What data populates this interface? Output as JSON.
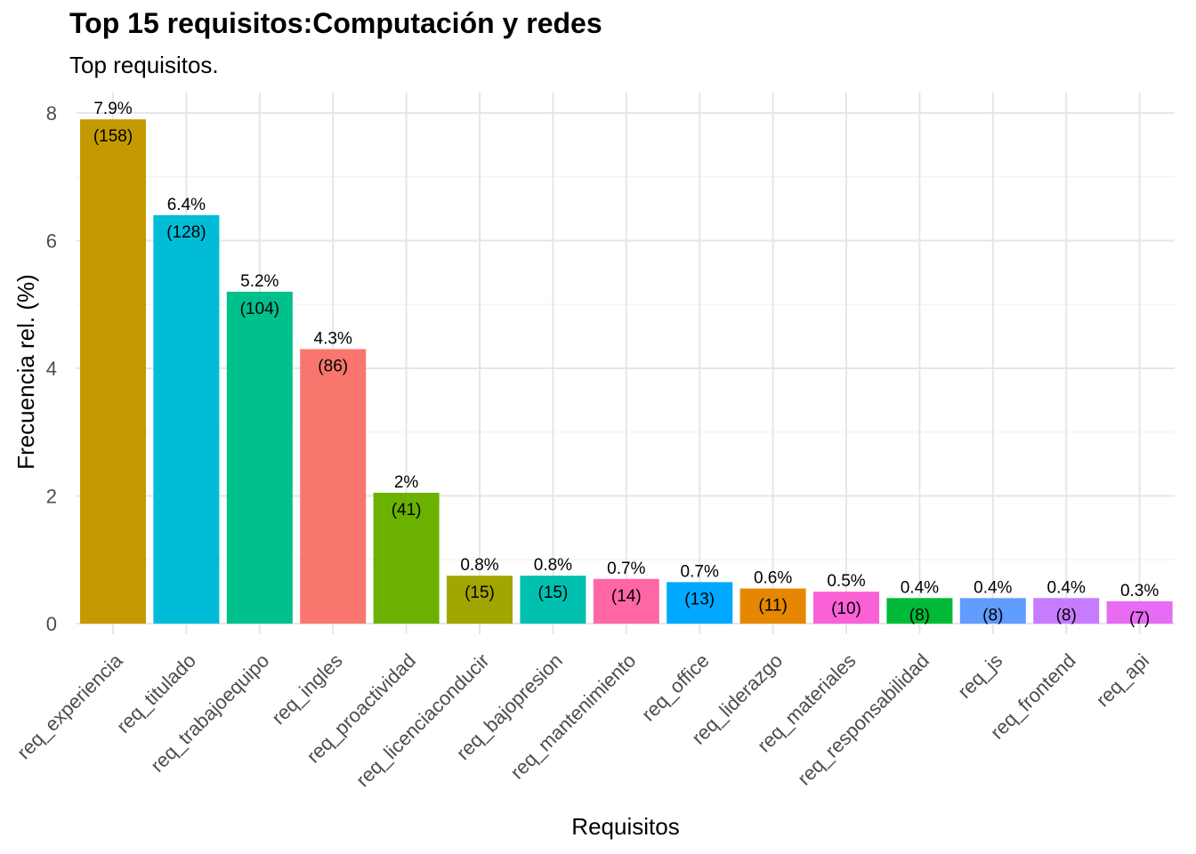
{
  "chart_data": {
    "type": "bar",
    "title": "Top 15 requisitos:Computación y redes",
    "subtitle": "Top requisitos.",
    "xlabel": "Requisitos",
    "ylabel": "Frecuencia rel. (%)",
    "ylim": [
      0,
      8
    ],
    "yticks": [
      "0",
      "2",
      "4",
      "6",
      "8"
    ],
    "grid": true,
    "categories": [
      "req_experiencia",
      "req_titulado",
      "req_trabajoequipo",
      "req_ingles",
      "req_proactividad",
      "req_licenciaconducir",
      "req_bajopresion",
      "req_mantenimiento",
      "req_office",
      "req_liderazgo",
      "req_materiales",
      "req_responsabilidad",
      "req_js",
      "req_frontend",
      "req_api"
    ],
    "values": [
      7.9,
      6.4,
      5.2,
      4.3,
      2.05,
      0.75,
      0.75,
      0.7,
      0.65,
      0.55,
      0.5,
      0.4,
      0.4,
      0.4,
      0.35
    ],
    "pct_labels": [
      "7.9%",
      "6.4%",
      "5.2%",
      "4.3%",
      "2%",
      "0.8%",
      "0.8%",
      "0.7%",
      "0.7%",
      "0.6%",
      "0.5%",
      "0.4%",
      "0.4%",
      "0.4%",
      "0.3%"
    ],
    "count_labels": [
      "(158)",
      "(128)",
      "(104)",
      "(86)",
      "(41)",
      "(15)",
      "(15)",
      "(14)",
      "(13)",
      "(11)",
      "(10)",
      "(8)",
      "(8)",
      "(8)",
      "(7)"
    ],
    "colors": [
      "#C49A00",
      "#00BCD8",
      "#00C08B",
      "#F8766D",
      "#6BB100",
      "#A3A500",
      "#00C0AF",
      "#FF67A4",
      "#00A9FF",
      "#E58700",
      "#FB61D7",
      "#00BA38",
      "#619CFF",
      "#C77CFF",
      "#E76BF3"
    ]
  }
}
